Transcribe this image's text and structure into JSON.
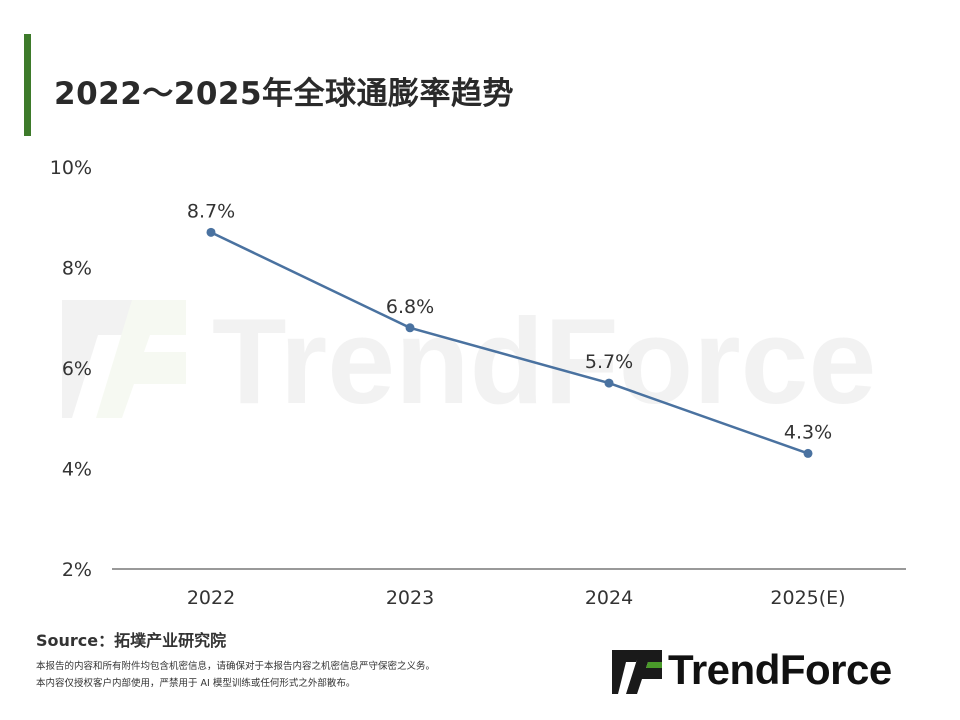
{
  "title": "2022～2025年全球通膨率趋势",
  "source": "Source：拓墣产业研究院",
  "disclaimer": [
    "本报告的内容和所有附件均包含机密信息，请确保对于本报告内容之机密信息严守保密之义务。",
    "本内容仅授权客户内部使用，严禁用于 AI 模型训练或任何形式之外部散布。"
  ],
  "brand": {
    "name": "TrendForce",
    "watermark": "TrendForce"
  },
  "colors": {
    "accent_bar": "#3d7a2a",
    "line": "#4a72a0",
    "logo_dark": "#1a1a1a",
    "logo_green": "#4a9a2a"
  },
  "chart_data": {
    "type": "line",
    "categories": [
      "2022",
      "2023",
      "2024",
      "2025(E)"
    ],
    "series": [
      {
        "values": [
          8.7,
          6.8,
          5.7,
          4.3
        ],
        "labels": [
          "8.7%",
          "6.8%",
          "5.7%",
          "4.3%"
        ]
      }
    ],
    "yticks": [
      2,
      4,
      6,
      8,
      10
    ],
    "ytick_labels": [
      "2%",
      "4%",
      "6%",
      "8%",
      "10%"
    ],
    "ylim": [
      2,
      10
    ],
    "grid": false
  }
}
